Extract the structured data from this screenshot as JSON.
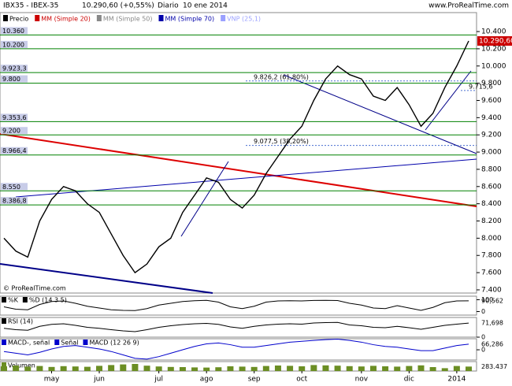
{
  "chart_data": {
    "type": "line",
    "title": "IBX35 - IBEX-35",
    "subtitle": "10.290,60 (+0,55%)",
    "period": "Diario",
    "date": "10 ene 2014",
    "source": "www.ProRealTime.com",
    "watermark": "© ProRealTime.com",
    "categories": [
      null,
      null,
      null,
      null,
      "may",
      null,
      null,
      null,
      "jun",
      null,
      null,
      null,
      null,
      "jul",
      null,
      null,
      null,
      "ago",
      null,
      null,
      null,
      "sep",
      null,
      null,
      null,
      "oct",
      null,
      null,
      null,
      null,
      "nov",
      null,
      null,
      null,
      "dic",
      null,
      null,
      null,
      "2014",
      null
    ],
    "series": [
      {
        "name": "Precio",
        "color": "#000000",
        "values": [
          8000,
          7850,
          7780,
          8200,
          8450,
          8600,
          8550,
          8400,
          8300,
          8050,
          7800,
          7600,
          7700,
          7900,
          8000,
          8300,
          8500,
          8700,
          8650,
          8450,
          8350,
          8500,
          8750,
          8950,
          9150,
          9300,
          9600,
          9850,
          10000,
          9900,
          9850,
          9650,
          9600,
          9750,
          9550,
          9300,
          9450,
          9750,
          10000,
          10290.6
        ],
        "value_labels": [
          null,
          null,
          null,
          null,
          null,
          null,
          null,
          null,
          null,
          null,
          null,
          null,
          null,
          null,
          null,
          null,
          null,
          null,
          null,
          null,
          null,
          null,
          null,
          null,
          null,
          null,
          null,
          null,
          null,
          null,
          null,
          null,
          null,
          null,
          null,
          null,
          null,
          null,
          null,
          "10.290,60"
        ]
      }
    ],
    "indicators": [
      {
        "name": "MM (Simple 20)",
        "color": "#cc0000"
      },
      {
        "name": "MM (Simple 50)",
        "color": "#888888"
      },
      {
        "name": "MM (Simple 70)",
        "color": "#0000aa"
      },
      {
        "name": "VNP (25,1)",
        "color": "#9aa0ff"
      }
    ],
    "ylim": [
      7363,
      10620
    ],
    "yticks": [
      {
        "value": 7400,
        "label": "7.400"
      },
      {
        "value": 7600,
        "label": "7.600"
      },
      {
        "value": 7800,
        "label": "7.800"
      },
      {
        "value": 8000,
        "label": "8.000"
      },
      {
        "value": 8200,
        "label": "8.200"
      },
      {
        "value": 8400,
        "label": "8.400"
      },
      {
        "value": 8600,
        "label": "8.600"
      },
      {
        "value": 8800,
        "label": "8.800"
      },
      {
        "value": 9000,
        "label": "9.000"
      },
      {
        "value": 9200,
        "label": "9.200"
      },
      {
        "value": 9400,
        "label": "9.400"
      },
      {
        "value": 9600,
        "label": "9.600"
      },
      {
        "value": 9800,
        "label": "9.800"
      },
      {
        "value": 10000,
        "label": "10.000"
      },
      {
        "value": 10200,
        "label": "10.200"
      },
      {
        "value": 10400,
        "label": "10.400"
      }
    ],
    "levels": [
      {
        "value": 10360,
        "label": "10.360"
      },
      {
        "value": 10200,
        "label": "10.200"
      },
      {
        "value": 9923.3,
        "label": "9.923,3"
      },
      {
        "value": 9800,
        "label": "9.800"
      },
      {
        "value": 9353.6,
        "label": "9.353,6"
      },
      {
        "value": 9200,
        "label": "9.200"
      },
      {
        "value": 8966.4,
        "label": "8.966,4"
      },
      {
        "value": 8550,
        "label": "8.550"
      },
      {
        "value": 8386.8,
        "label": "8.386,8"
      }
    ],
    "annotations": [
      {
        "value": 9826.2,
        "label": "9.826,2 (61,80%)"
      },
      {
        "value": 9077.5,
        "label": "9.077,5 (38,20%)"
      },
      {
        "value": 9715.6,
        "label": "9.715,6"
      }
    ],
    "panels": [
      {
        "type": "line",
        "names": [
          "%K",
          "%D (14 3 5)"
        ],
        "color": "#000000",
        "ylim": [
          -30,
          130
        ],
        "yticks": [
          0,
          100
        ],
        "values": [
          40,
          20,
          15,
          60,
          85,
          90,
          70,
          45,
          30,
          15,
          10,
          8,
          25,
          55,
          70,
          85,
          92,
          95,
          80,
          40,
          25,
          45,
          80,
          90,
          92,
          90,
          94,
          95,
          93,
          70,
          55,
          30,
          25,
          50,
          30,
          10,
          35,
          75,
          90,
          90.562
        ],
        "value_labels": [
          null,
          null,
          null,
          null,
          null,
          null,
          null,
          null,
          null,
          null,
          null,
          null,
          null,
          null,
          null,
          null,
          null,
          null,
          null,
          null,
          null,
          null,
          null,
          null,
          null,
          null,
          null,
          null,
          null,
          null,
          null,
          null,
          null,
          null,
          null,
          null,
          null,
          null,
          null,
          "90,562"
        ]
      },
      {
        "type": "line",
        "names": [
          "RSI (14)"
        ],
        "color": "#000000",
        "ylim": [
          0,
          100
        ],
        "yticks": [
          0
        ],
        "values": [
          45,
          38,
          35,
          55,
          65,
          68,
          60,
          50,
          45,
          38,
          32,
          28,
          38,
          50,
          58,
          64,
          68,
          70,
          65,
          52,
          45,
          55,
          62,
          66,
          68,
          66,
          72,
          74,
          75,
          62,
          58,
          50,
          48,
          55,
          48,
          40,
          50,
          60,
          66,
          71.698
        ],
        "value_labels": [
          null,
          null,
          null,
          null,
          null,
          null,
          null,
          null,
          null,
          null,
          null,
          null,
          null,
          null,
          null,
          null,
          null,
          null,
          null,
          null,
          null,
          null,
          null,
          null,
          null,
          null,
          null,
          null,
          null,
          null,
          null,
          null,
          null,
          null,
          null,
          null,
          null,
          null,
          null,
          "71,698"
        ]
      },
      {
        "type": "line",
        "names": [
          "MACD-, señal",
          "Señal",
          "MACD (12 26 9)"
        ],
        "color": "#0000cc",
        "ylim": [
          -120,
          130
        ],
        "yticks": [
          0
        ],
        "values": [
          -20,
          -40,
          -60,
          -30,
          10,
          40,
          50,
          30,
          10,
          -20,
          -60,
          -100,
          -110,
          -80,
          -40,
          0,
          40,
          70,
          80,
          60,
          30,
          30,
          50,
          70,
          90,
          100,
          110,
          120,
          125,
          110,
          90,
          60,
          40,
          30,
          10,
          -10,
          -10,
          20,
          50,
          66.286
        ],
        "value_labels": [
          null,
          null,
          null,
          null,
          null,
          null,
          null,
          null,
          null,
          null,
          null,
          null,
          null,
          null,
          null,
          null,
          null,
          null,
          null,
          null,
          null,
          null,
          null,
          null,
          null,
          null,
          null,
          null,
          null,
          null,
          null,
          null,
          null,
          null,
          null,
          null,
          null,
          null,
          null,
          "66,286"
        ]
      },
      {
        "type": "bar",
        "names": [
          "Volumen"
        ],
        "color": "#6b8e23",
        "ylim": [
          0,
          600000
        ],
        "yticks": [],
        "values": [
          300000,
          350000,
          280000,
          320000,
          260000,
          310000,
          290000,
          270000,
          330000,
          380000,
          420000,
          450000,
          340000,
          290000,
          260000,
          250000,
          230000,
          220000,
          240000,
          300000,
          280000,
          260000,
          320000,
          350000,
          330000,
          300000,
          380000,
          360000,
          340000,
          310000,
          290000,
          330000,
          300000,
          280000,
          320000,
          360000,
          250000,
          180000,
          320000,
          283437
        ],
        "value_labels": [
          null,
          null,
          null,
          null,
          null,
          null,
          null,
          null,
          null,
          null,
          null,
          null,
          null,
          null,
          null,
          null,
          null,
          null,
          null,
          null,
          null,
          null,
          null,
          null,
          null,
          null,
          null,
          null,
          null,
          null,
          null,
          null,
          null,
          null,
          null,
          null,
          null,
          null,
          null,
          "283.437"
        ]
      }
    ]
  }
}
